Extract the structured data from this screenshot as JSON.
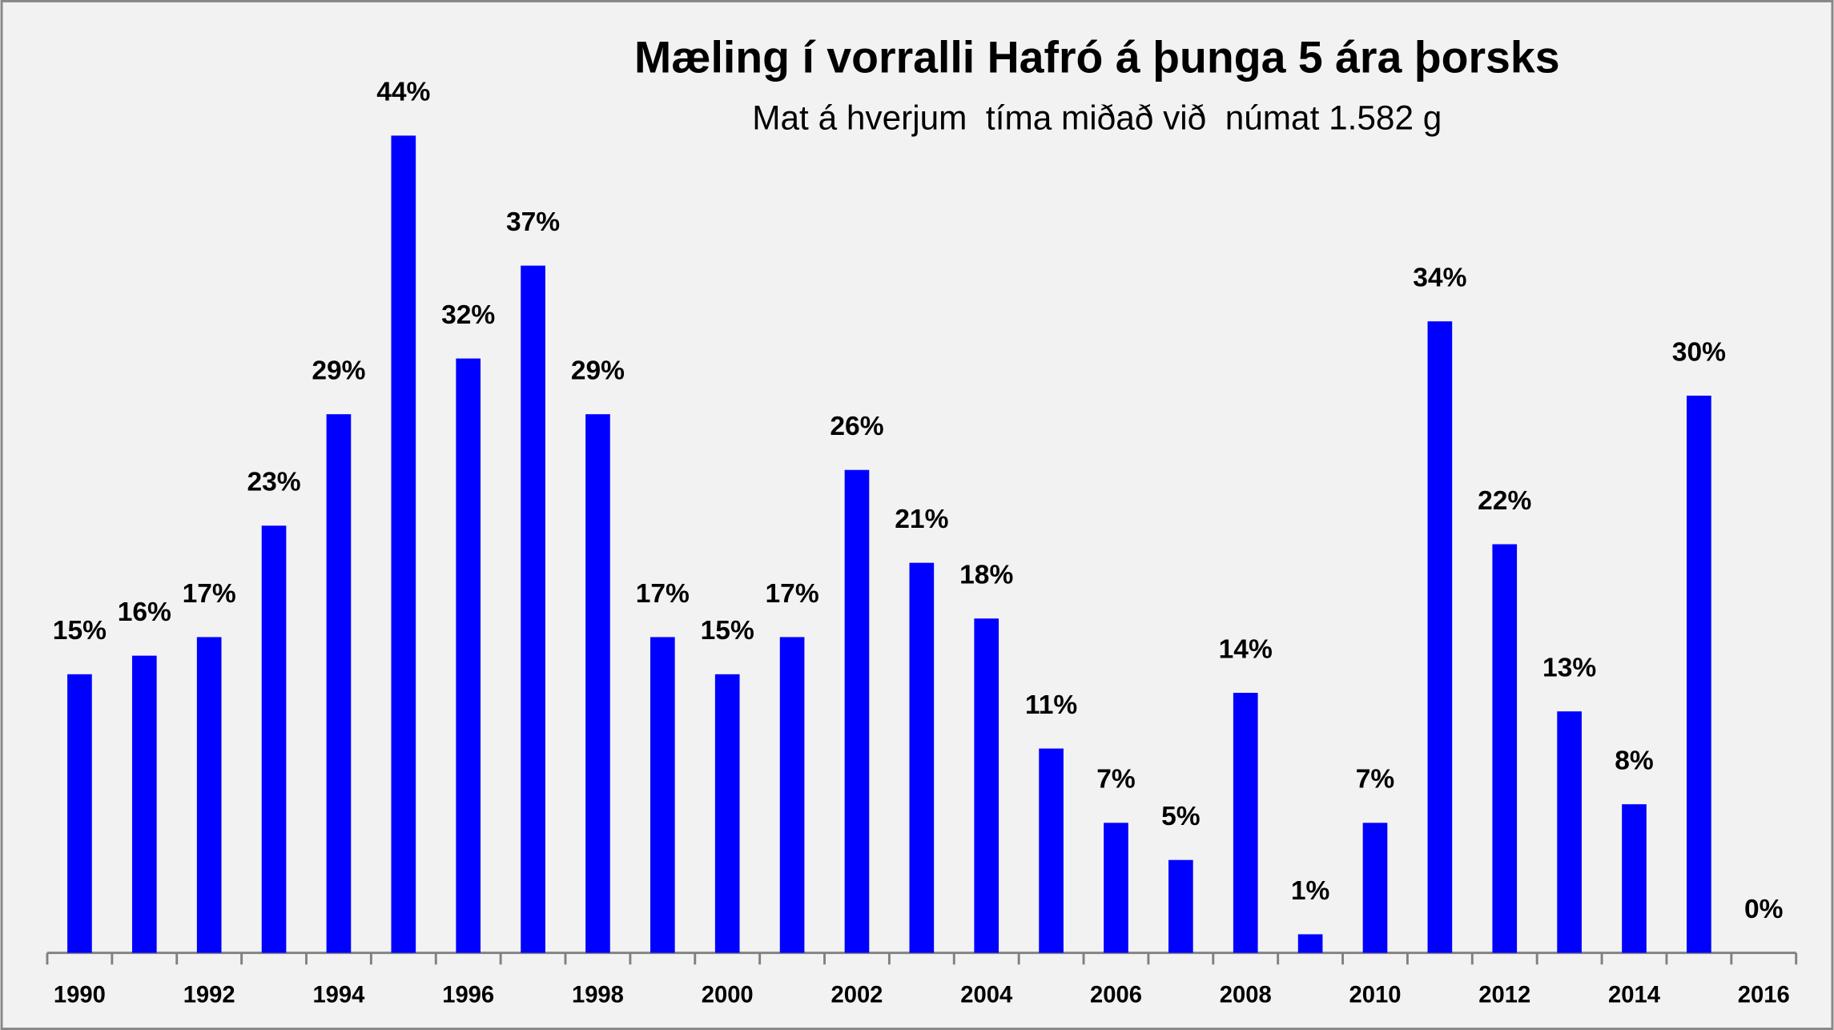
{
  "chart_data": {
    "type": "bar",
    "title": "Mæling í vorralli Hafró á þunga 5 ára þorsks",
    "subtitle": "Mat á hverjum  tíma miðað við  númat 1.582 g",
    "categories": [
      "1990",
      null,
      "1992",
      null,
      "1994",
      null,
      "1996",
      null,
      "1998",
      null,
      "2000",
      null,
      "2002",
      null,
      "2004",
      null,
      "2006",
      null,
      "2008",
      null,
      "2010",
      null,
      "2012",
      null,
      "2014",
      null,
      "2016"
    ],
    "values": [
      15,
      16,
      17,
      23,
      29,
      44,
      32,
      37,
      29,
      17,
      15,
      17,
      26,
      21,
      18,
      11,
      7,
      5,
      14,
      1,
      7,
      34,
      22,
      13,
      8,
      30,
      0
    ],
    "value_labels": [
      "15%",
      "16%",
      "17%",
      "23%",
      "29%",
      "44%",
      "32%",
      "37%",
      "29%",
      "17%",
      "15%",
      "17%",
      "26%",
      "21%",
      "18%",
      "11%",
      "7%",
      "5%",
      "14%",
      "1%",
      "7%",
      "34%",
      "22%",
      "13%",
      "8%",
      "30%",
      "0%"
    ],
    "color": "#0000ff",
    "grid": false
  }
}
